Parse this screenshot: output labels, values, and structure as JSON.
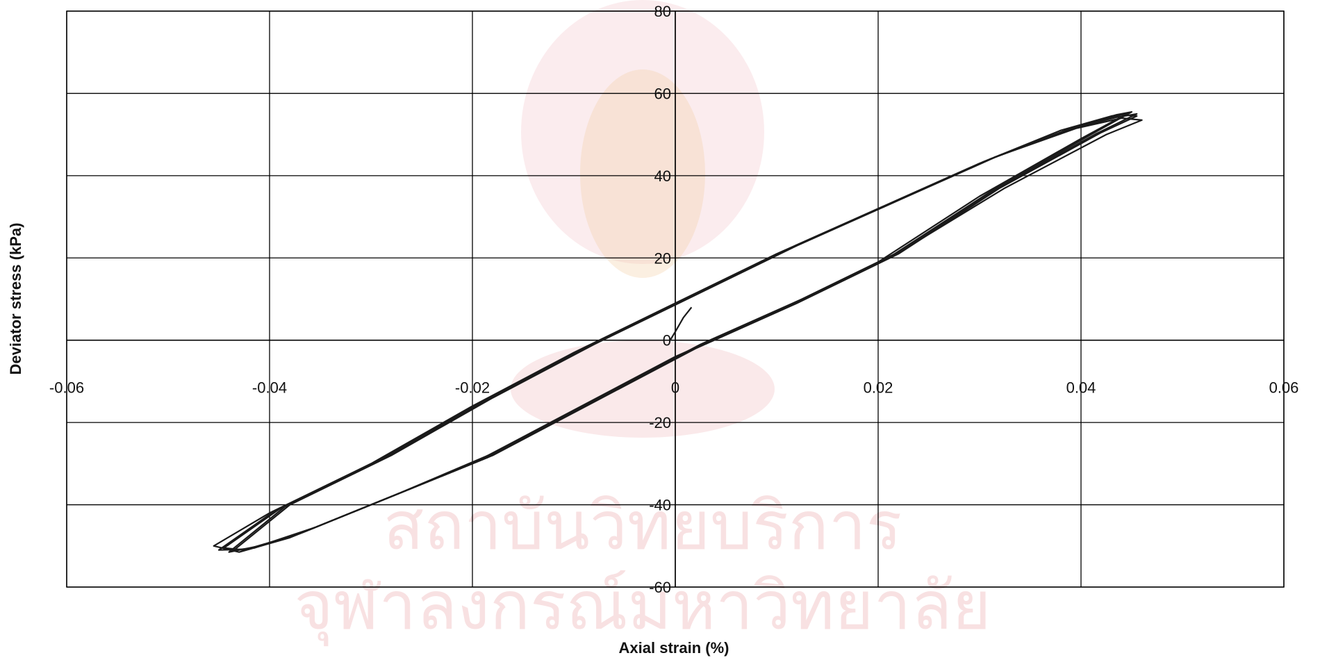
{
  "chart_data": {
    "type": "line",
    "title": "",
    "xlabel": "Axial strain (%)",
    "ylabel": "Deviator stress (kPa)",
    "xlim": [
      -0.06,
      0.06
    ],
    "ylim": [
      -60,
      80
    ],
    "x_ticks": [
      -0.06,
      -0.04,
      -0.02,
      0,
      0.02,
      0.04,
      0.06
    ],
    "x_tick_labels": [
      "-0.06",
      "-0.04",
      "-0.02",
      "0",
      "0.02",
      "0.04",
      "0.06"
    ],
    "y_ticks": [
      80,
      60,
      40,
      20,
      0,
      -20,
      -40,
      -60
    ],
    "y_tick_labels": [
      "80",
      "60",
      "40",
      "20",
      "0",
      "-20",
      "-40",
      "-60"
    ],
    "grid": true,
    "legend": "none",
    "line_color": "#1a1a1a",
    "grid_color": "#000000",
    "initial_loading": {
      "x": [
        -0.0005,
        0.0001,
        0.0008,
        0.0016
      ],
      "y": [
        0,
        2.5,
        5.5,
        8
      ]
    },
    "series": [
      {
        "loading": {
          "x": [
            -0.0455,
            -0.04,
            -0.03,
            -0.02,
            -0.01,
            0.0,
            0.01,
            0.02,
            0.03,
            0.038,
            0.043,
            0.0445
          ],
          "y": [
            -50,
            -42,
            -30,
            -16,
            -3,
            9,
            21,
            32,
            43,
            51,
            54.5,
            55
          ]
        },
        "unloading": {
          "x": [
            0.0445,
            0.04,
            0.03,
            0.02,
            0.01,
            0.0,
            -0.01,
            -0.02,
            -0.03,
            -0.038,
            -0.043,
            -0.0455
          ],
          "y": [
            55,
            49,
            35,
            19,
            7,
            -4,
            -17,
            -30,
            -40,
            -48,
            -51.5,
            -50
          ]
        }
      },
      {
        "loading": {
          "x": [
            -0.0445,
            -0.039,
            -0.029,
            -0.019,
            -0.009,
            0.001,
            0.011,
            0.021,
            0.031,
            0.039,
            0.0435,
            0.045
          ],
          "y": [
            -50.5,
            -41,
            -29,
            -15,
            -2,
            10,
            22,
            33,
            44,
            51.5,
            54.8,
            55.5
          ]
        },
        "unloading": {
          "x": [
            0.045,
            0.041,
            0.031,
            0.021,
            0.011,
            0.001,
            -0.009,
            -0.019,
            -0.029,
            -0.037,
            -0.0425,
            -0.0445
          ],
          "y": [
            55.5,
            50,
            36,
            20,
            8,
            -3,
            -16,
            -29,
            -39,
            -47,
            -51,
            -50.5
          ]
        }
      },
      {
        "loading": {
          "x": [
            -0.0435,
            -0.038,
            -0.028,
            -0.018,
            -0.008,
            0.002,
            0.012,
            0.022,
            0.032,
            0.04,
            0.044,
            0.0455
          ],
          "y": [
            -51,
            -40,
            -28,
            -14,
            -1,
            11,
            23,
            34,
            45,
            52,
            54.8,
            54.5
          ]
        },
        "unloading": {
          "x": [
            0.0455,
            0.042,
            0.032,
            0.022,
            0.012,
            0.002,
            -0.008,
            -0.018,
            -0.028,
            -0.036,
            -0.0415,
            -0.0435
          ],
          "y": [
            54.5,
            50.5,
            37,
            21,
            9,
            -2,
            -15,
            -28,
            -38,
            -46,
            -50.5,
            -51
          ]
        }
      },
      {
        "loading": {
          "x": [
            -0.044,
            -0.0385,
            -0.0285,
            -0.0185,
            -0.0085,
            0.0015,
            0.0115,
            0.0215,
            0.0315,
            0.0395,
            0.044,
            0.046
          ],
          "y": [
            -51.5,
            -40.5,
            -28.5,
            -14.5,
            -1.5,
            10.5,
            22.5,
            33.5,
            44.5,
            51.5,
            54,
            53.5
          ]
        },
        "unloading": {
          "x": [
            0.046,
            0.0425,
            0.0325,
            0.0225,
            0.0125,
            0.0025,
            -0.0075,
            -0.0175,
            -0.0275,
            -0.0355,
            -0.041,
            -0.044
          ],
          "y": [
            53.5,
            50,
            37,
            22,
            10,
            -1,
            -14,
            -27,
            -37.5,
            -45.5,
            -50,
            -51.5
          ]
        }
      },
      {
        "loading": {
          "x": [
            -0.045,
            -0.0395,
            -0.0295,
            -0.0195,
            -0.0095,
            0.0005,
            0.0105,
            0.0205,
            0.0305,
            0.0385,
            0.0435,
            0.0455
          ],
          "y": [
            -51,
            -41.5,
            -29.5,
            -15.5,
            -2.5,
            9.5,
            21.5,
            32.5,
            43.5,
            51,
            54.2,
            55
          ]
        },
        "unloading": {
          "x": [
            0.0455,
            0.0415,
            0.0315,
            0.0215,
            0.0115,
            0.0015,
            -0.0085,
            -0.0185,
            -0.0285,
            -0.0365,
            -0.042,
            -0.045
          ],
          "y": [
            55,
            50.2,
            36.5,
            20.5,
            8.5,
            -2.5,
            -15.5,
            -28.5,
            -38.5,
            -46.5,
            -50.8,
            -51
          ]
        }
      }
    ]
  }
}
